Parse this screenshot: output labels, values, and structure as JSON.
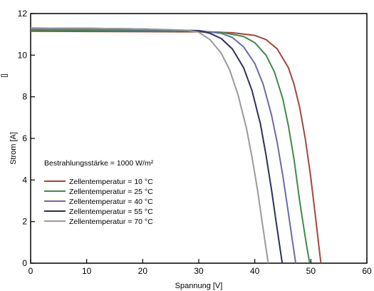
{
  "chart_data": {
    "type": "line",
    "xlabel": "Spannung [V]",
    "ylabel": "Strom [A]",
    "xlim": [
      0,
      60
    ],
    "ylim": [
      0,
      12
    ],
    "x_ticks": [
      "0",
      "10",
      "20",
      "30",
      "40",
      "50",
      "60"
    ],
    "y_ticks": [
      "0",
      "2",
      "4",
      "6",
      "8",
      "10",
      "12"
    ],
    "legend_title": "Bestrahlungsstärke = 1000 W/m²",
    "legend_position": "lower-left",
    "grid": false,
    "edge_marker": "[]",
    "series": [
      {
        "name": "Zellentemperatur = 10 °C",
        "color": "#a0473a",
        "x": [
          0,
          10,
          20,
          30,
          36,
          40,
          42,
          44,
          46,
          47,
          48,
          49,
          50,
          50.8,
          51.4,
          51.8
        ],
        "y": [
          11.15,
          11.14,
          11.13,
          11.12,
          11.08,
          10.95,
          10.75,
          10.3,
          9.4,
          8.6,
          7.5,
          6.0,
          4.1,
          2.3,
          0.9,
          0.0
        ]
      },
      {
        "name": "Zellentemperatur = 25 °C",
        "color": "#3f8a4a",
        "x": [
          0,
          10,
          20,
          30,
          34,
          38,
          40,
          42,
          43.5,
          45,
          46,
          47,
          48,
          48.8,
          49.4,
          49.8
        ],
        "y": [
          11.2,
          11.19,
          11.17,
          11.14,
          11.1,
          10.9,
          10.6,
          10.0,
          9.2,
          7.9,
          6.6,
          5.0,
          3.0,
          1.6,
          0.6,
          0.0
        ]
      },
      {
        "name": "Zellentemperatur = 40 °C",
        "color": "#6a6aa8",
        "x": [
          0,
          10,
          20,
          30,
          34,
          36,
          38,
          40,
          41.5,
          43,
          44,
          45,
          46,
          46.7,
          47.3
        ],
        "y": [
          11.25,
          11.24,
          11.22,
          11.18,
          11.05,
          10.85,
          10.4,
          9.6,
          8.6,
          7.1,
          5.8,
          4.2,
          2.4,
          1.1,
          0.0
        ]
      },
      {
        "name": "Zellentemperatur = 55 °C",
        "color": "#2b2f5c",
        "x": [
          0,
          10,
          20,
          30,
          32,
          34,
          36,
          38,
          39.5,
          41,
          42,
          43,
          43.8,
          44.4,
          44.9
        ],
        "y": [
          11.3,
          11.29,
          11.26,
          11.17,
          11.05,
          10.8,
          10.3,
          9.4,
          8.3,
          6.7,
          5.2,
          3.5,
          2.0,
          0.9,
          0.0
        ]
      },
      {
        "name": "Zellentemperatur = 70 °C",
        "color": "#9a9a9a",
        "x": [
          0,
          10,
          20,
          28,
          30,
          32,
          34,
          35.5,
          37,
          38.5,
          39.5,
          40.5,
          41.3,
          41.9,
          42.4
        ],
        "y": [
          11.3,
          11.29,
          11.26,
          11.2,
          11.1,
          10.75,
          10.1,
          9.3,
          8.1,
          6.5,
          5.1,
          3.5,
          2.0,
          0.9,
          0.0
        ]
      }
    ]
  }
}
